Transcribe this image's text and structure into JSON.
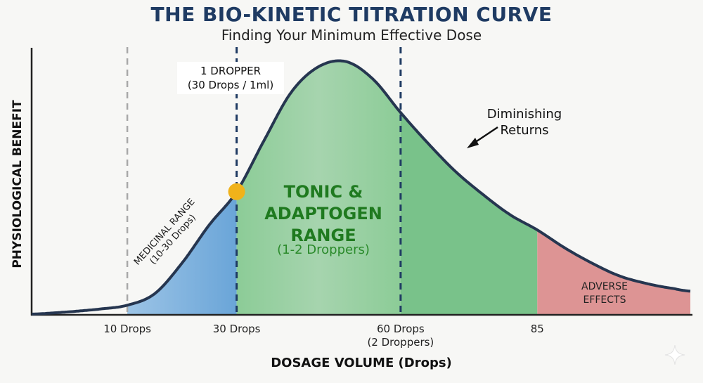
{
  "chart_data": {
    "type": "area",
    "title": "THE BIO-KINETIC TITRATION CURVE",
    "subtitle": "Finding Your Minimum Effective Dose",
    "xlabel": "DOSAGE VOLUME (Drops)",
    "ylabel": "PHYSIOLOGICAL BENEFIT",
    "x_ticks": [
      {
        "value": 10,
        "label": "10 Drops",
        "sublabel": ""
      },
      {
        "value": 30,
        "label": "30 Drops",
        "sublabel": ""
      },
      {
        "value": 60,
        "label": "60 Drops",
        "sublabel": "(2 Droppers)"
      },
      {
        "value": 85,
        "label": "85",
        "sublabel": ""
      }
    ],
    "xlim": [
      -7.5,
      113
    ],
    "curve": {
      "x": [
        -7.5,
        0,
        5,
        10,
        15,
        20,
        25,
        30,
        35,
        40,
        45,
        50,
        55,
        60,
        65,
        70,
        75,
        80,
        85,
        90,
        95,
        100,
        105,
        110,
        113
      ],
      "y": [
        0,
        0.01,
        0.02,
        0.035,
        0.08,
        0.2,
        0.35,
        0.48,
        0.68,
        0.87,
        0.97,
        0.99,
        0.92,
        0.79,
        0.67,
        0.56,
        0.47,
        0.39,
        0.33,
        0.26,
        0.2,
        0.15,
        0.12,
        0.1,
        0.09
      ],
      "ylim": [
        0,
        1.0
      ]
    },
    "regions": [
      {
        "name": "medicinal",
        "x_start": 10,
        "x_end": 30,
        "color": "#7fb2dd"
      },
      {
        "name": "tonic",
        "x_start": 30,
        "x_end": 60,
        "color": "#9ccfa4"
      },
      {
        "name": "tonic-right",
        "x_start": 60,
        "x_end": 85,
        "color": "#79c28a"
      },
      {
        "name": "adverse",
        "x_start": 85,
        "x_end": 113,
        "color": "#dd9494"
      }
    ],
    "markers": [
      {
        "type": "dashed-line",
        "x": 10,
        "color": "#a8a8a8"
      },
      {
        "type": "dashed-line",
        "x": 30,
        "color": "#1f3b63"
      },
      {
        "type": "dashed-line",
        "x": 60,
        "color": "#1f3b63"
      },
      {
        "type": "point",
        "x": 30,
        "y": 0.48,
        "color": "#f0b21a"
      }
    ],
    "annotations": {
      "dropper_line1": "1 DROPPER",
      "dropper_line2": "(30 Drops / 1ml)",
      "diminishing_line1": "Diminishing",
      "diminishing_line2": "Returns",
      "tonic_line1": "TONIC &",
      "tonic_line2": "ADAPTOGEN",
      "tonic_line3": "RANGE",
      "tonic_sub": "(1-2 Droppers)",
      "medicinal_line1": "MEDICINAL RANGE",
      "medicinal_line2": "(10-30 Drops)",
      "adverse_line1": "ADVERSE",
      "adverse_line2": "EFFECTS"
    },
    "grid": false,
    "curve_color": "#263650"
  }
}
